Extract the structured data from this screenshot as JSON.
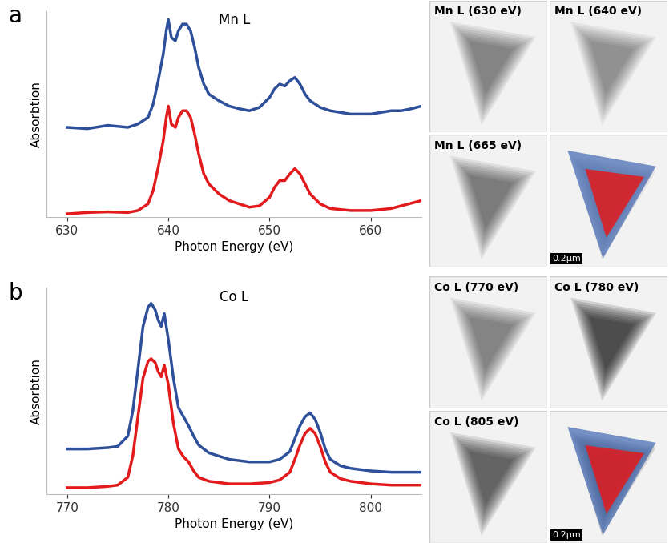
{
  "chart_data": [
    {
      "type": "line",
      "title": "Mn L",
      "annotations": [
        "a"
      ],
      "x_label": "Photon Energy (eV)",
      "y_label": "Absorbtion",
      "x": [
        630,
        632,
        634,
        636,
        637,
        638,
        638.5,
        639,
        639.5,
        639.8,
        640,
        640.3,
        640.7,
        641,
        641.4,
        641.8,
        642.2,
        642.6,
        643,
        643.5,
        644,
        645,
        646,
        647,
        648,
        649,
        650,
        650.5,
        651,
        651.5,
        652,
        652.5,
        653,
        653.5,
        654,
        655,
        656,
        658,
        660,
        662,
        663,
        664,
        665
      ],
      "series": [
        {
          "color": "#2e4f9a",
          "values": [
            1.3,
            1.28,
            1.33,
            1.3,
            1.35,
            1.45,
            1.65,
            2.0,
            2.4,
            2.75,
            2.92,
            2.65,
            2.6,
            2.75,
            2.85,
            2.85,
            2.75,
            2.5,
            2.2,
            1.95,
            1.8,
            1.7,
            1.62,
            1.58,
            1.55,
            1.6,
            1.75,
            1.88,
            1.95,
            1.92,
            2.0,
            2.05,
            1.95,
            1.8,
            1.7,
            1.6,
            1.55,
            1.5,
            1.5,
            1.55,
            1.55,
            1.58,
            1.62
          ]
        },
        {
          "color": "#e31a1c",
          "values": [
            0.0,
            0.02,
            0.03,
            0.02,
            0.05,
            0.15,
            0.35,
            0.7,
            1.1,
            1.45,
            1.62,
            1.35,
            1.3,
            1.45,
            1.55,
            1.55,
            1.45,
            1.2,
            0.9,
            0.6,
            0.45,
            0.3,
            0.2,
            0.15,
            0.1,
            0.12,
            0.25,
            0.4,
            0.5,
            0.5,
            0.6,
            0.68,
            0.6,
            0.45,
            0.3,
            0.15,
            0.08,
            0.05,
            0.05,
            0.08,
            0.12,
            0.16,
            0.2
          ]
        }
      ],
      "xlim": [
        628,
        665
      ],
      "xticks": [
        630,
        640,
        650,
        660
      ],
      "ylim": [
        -0.05,
        3.05
      ],
      "yticks": [],
      "tick_labels": "x"
    },
    {
      "type": "line",
      "title": "Co L",
      "annotations": [
        "b"
      ],
      "x_label": "Photon Energy (eV)",
      "y_label": "Absorbtion",
      "x": [
        770,
        772,
        774,
        775,
        776,
        776.5,
        777,
        777.5,
        778,
        778.3,
        778.7,
        779,
        779.3,
        779.6,
        780,
        780.5,
        781,
        781.5,
        782,
        782.5,
        783,
        784,
        786,
        788,
        790,
        791,
        792,
        792.5,
        793,
        793.5,
        794,
        794.5,
        795,
        795.5,
        796,
        797,
        798,
        800,
        802,
        805
      ],
      "series": [
        {
          "color": "#2e4f9a",
          "values": [
            0.3,
            0.3,
            0.31,
            0.32,
            0.4,
            0.6,
            0.92,
            1.25,
            1.4,
            1.43,
            1.38,
            1.3,
            1.25,
            1.35,
            1.15,
            0.85,
            0.62,
            0.55,
            0.48,
            0.4,
            0.33,
            0.27,
            0.22,
            0.2,
            0.2,
            0.22,
            0.28,
            0.38,
            0.48,
            0.55,
            0.58,
            0.53,
            0.43,
            0.3,
            0.22,
            0.17,
            0.15,
            0.13,
            0.12,
            0.12
          ]
        },
        {
          "color": "#e31a1c",
          "values": [
            0.0,
            0.0,
            0.01,
            0.02,
            0.08,
            0.25,
            0.55,
            0.85,
            0.98,
            1.0,
            0.97,
            0.9,
            0.86,
            0.95,
            0.8,
            0.5,
            0.3,
            0.24,
            0.2,
            0.13,
            0.08,
            0.05,
            0.03,
            0.03,
            0.04,
            0.06,
            0.12,
            0.22,
            0.33,
            0.42,
            0.46,
            0.42,
            0.32,
            0.2,
            0.12,
            0.07,
            0.05,
            0.03,
            0.02,
            0.02
          ]
        }
      ],
      "xlim": [
        768,
        805
      ],
      "xticks": [
        770,
        780,
        790,
        800
      ],
      "ylim": [
        -0.05,
        1.55
      ],
      "yticks": [],
      "tick_labels": "x"
    }
  ],
  "image_panels": [
    {
      "titles": [
        "Mn L (630 eV)",
        "Mn L (640 eV)",
        "Mn L (665 eV)"
      ],
      "scale_bar": "0.2µm"
    },
    {
      "titles": [
        "Co L (770 eV)",
        "Co L (780 eV)",
        "Co L (805 eV)"
      ],
      "scale_bar": "0.2µm"
    }
  ]
}
